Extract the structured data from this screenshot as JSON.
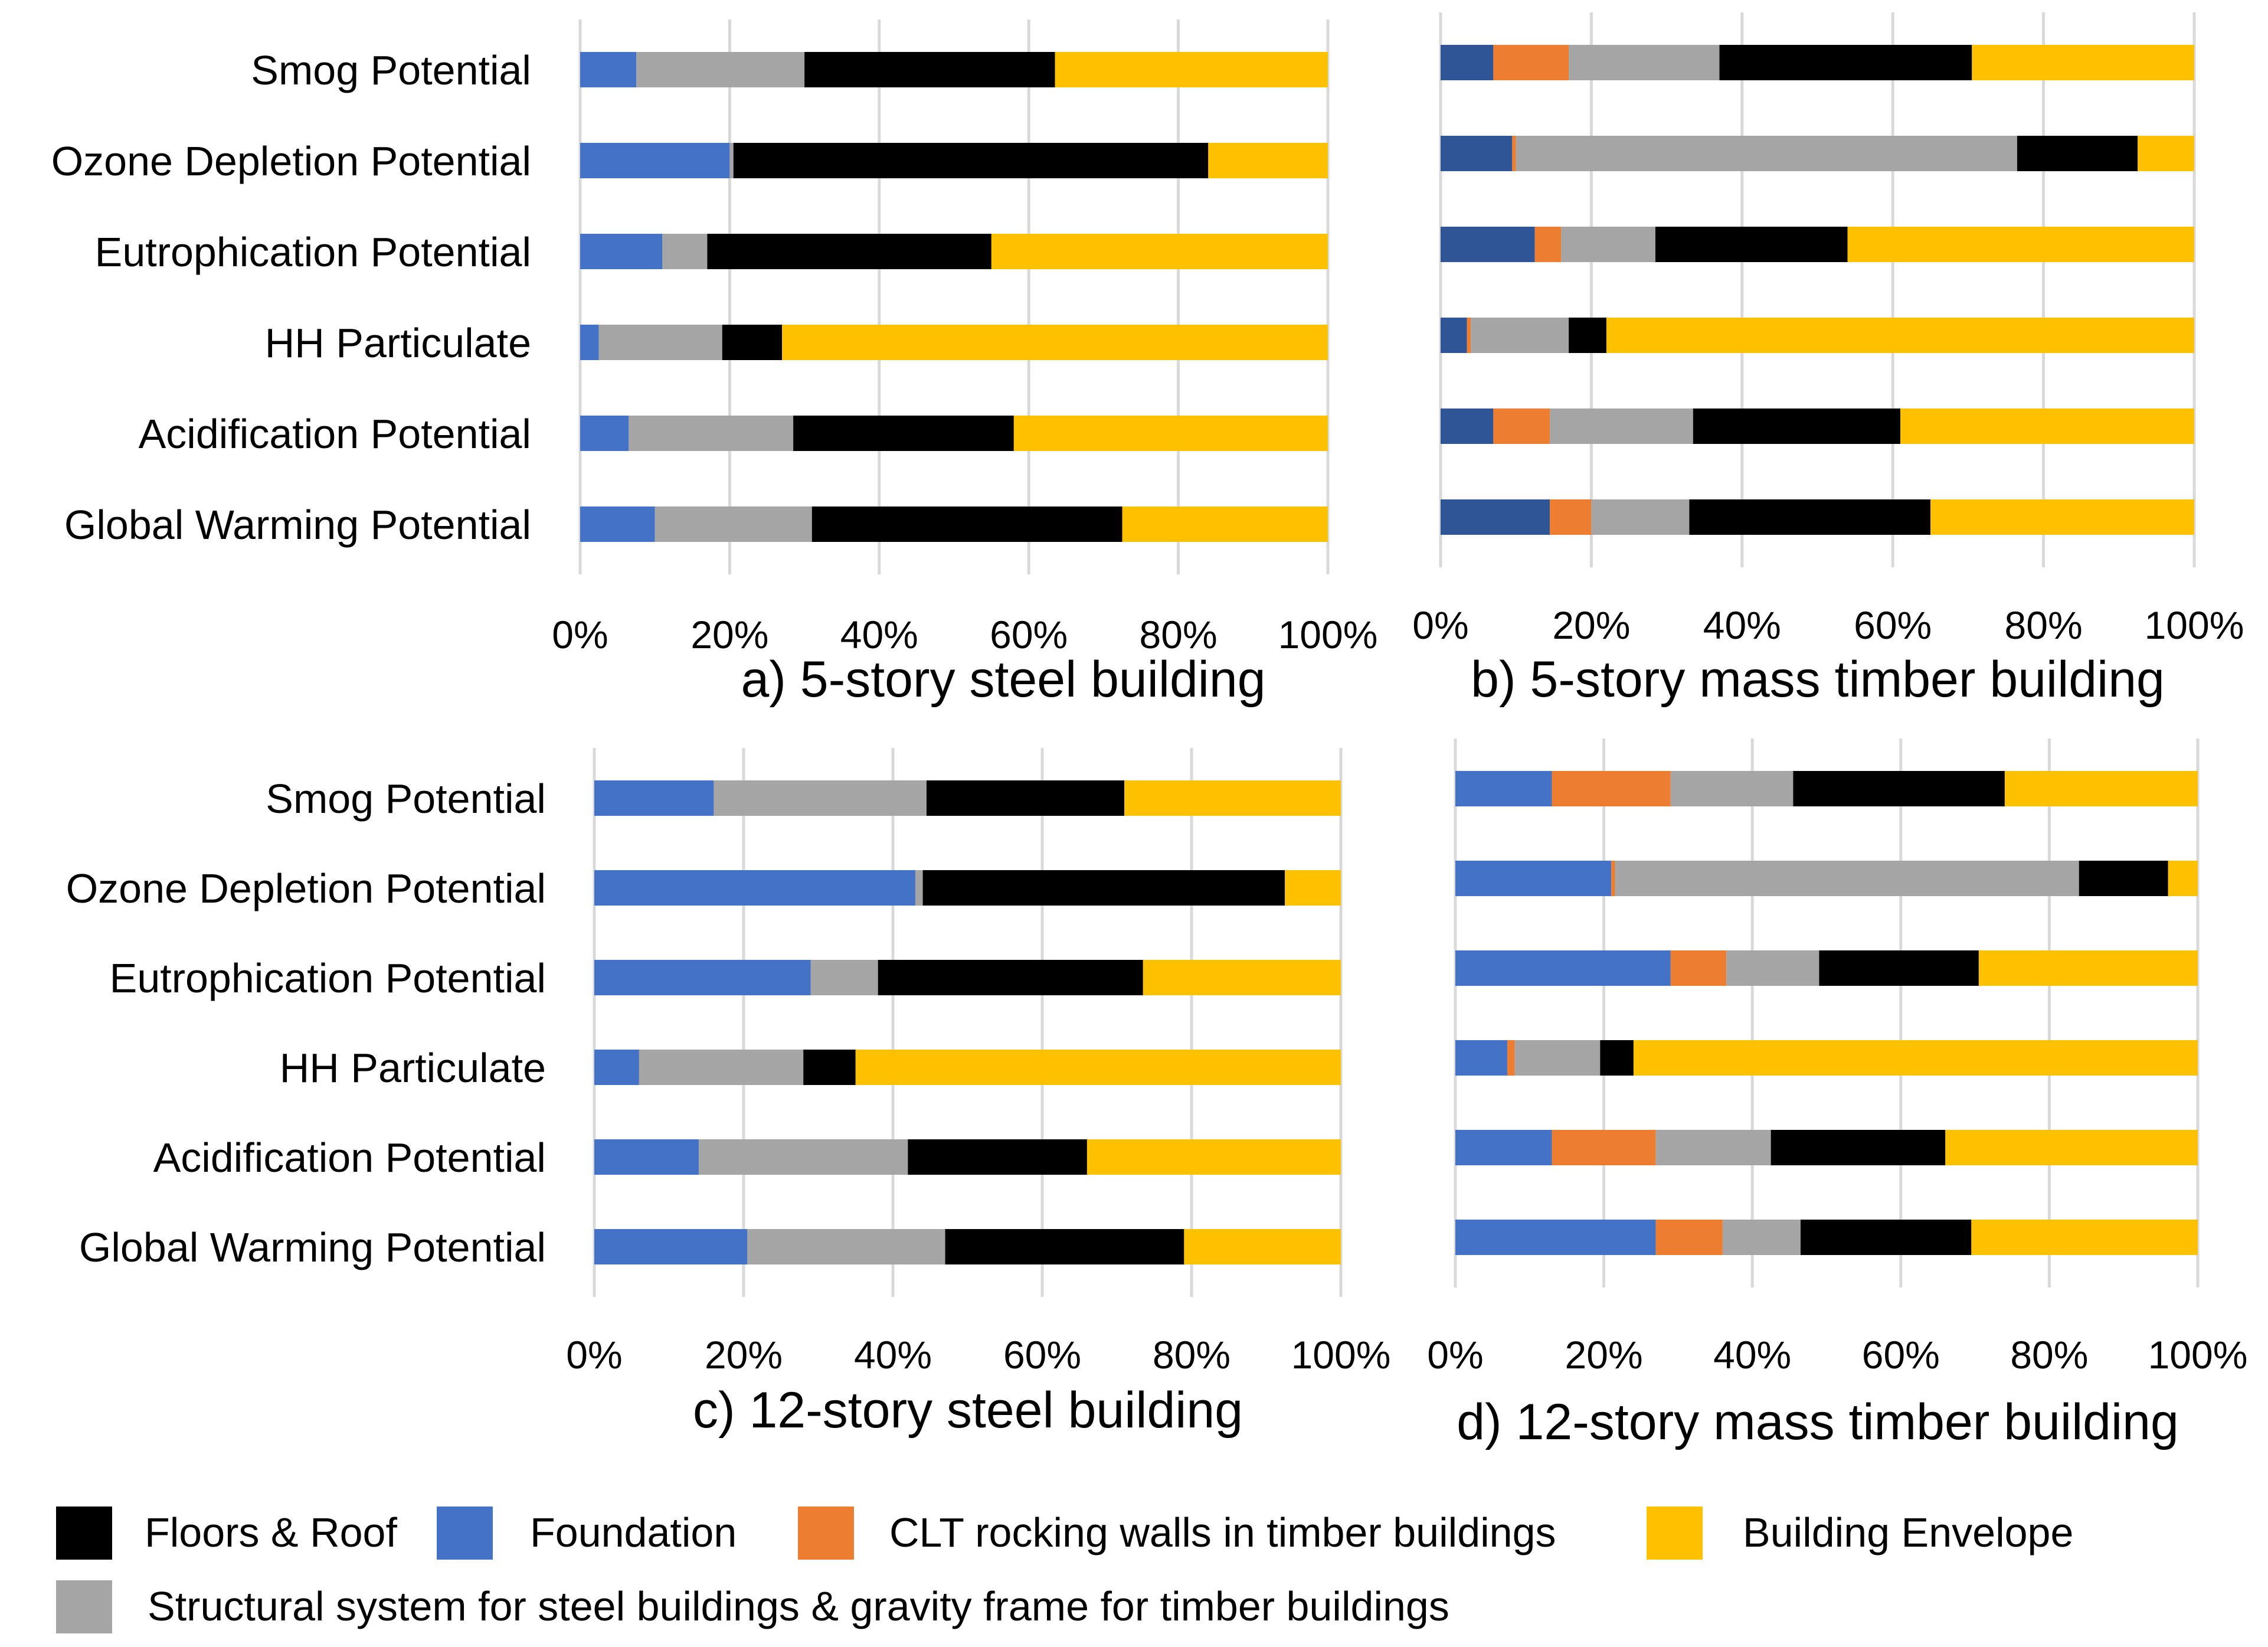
{
  "figure": {
    "legend": [
      {
        "key": "floors",
        "label": "Floors & Roof",
        "color": "#000000"
      },
      {
        "key": "foundation",
        "label": "Foundation",
        "color": "#4472C4"
      },
      {
        "key": "clt",
        "label": "CLT rocking walls in timber buildings",
        "color": "#ED7D31"
      },
      {
        "key": "envelope",
        "label": "Building Envelope",
        "color": "#FFC000"
      },
      {
        "key": "structural",
        "label": "Structural system for steel buildings & gravity frame for timber buildings",
        "color": "#A5A5A5"
      }
    ]
  },
  "chart_data": [
    {
      "type": "bar",
      "orientation": "horizontal",
      "stacked": "percent",
      "title": "a) 5-story steel building",
      "categories": [
        "Smog Potential",
        "Ozone Depletion Potential",
        "Eutrophication Potential",
        "HH Particulate",
        "Acidification Potential",
        "Global Warming Potential"
      ],
      "x_ticks": [
        "0%",
        "20%",
        "40%",
        "60%",
        "80%",
        "100%"
      ],
      "xlim": [
        0,
        100
      ],
      "series": [
        {
          "name": "Foundation",
          "color": "#4472C4",
          "values": [
            7.5,
            20,
            11,
            2.5,
            6.5,
            10
          ]
        },
        {
          "name": "CLT rocking walls",
          "color": "#ED7D31",
          "values": [
            0,
            0,
            0,
            0,
            0,
            0
          ]
        },
        {
          "name": "Structural system",
          "color": "#A5A5A5",
          "values": [
            22.5,
            0.5,
            6,
            16.5,
            22,
            21
          ]
        },
        {
          "name": "Floors & Roof",
          "color": "#000000",
          "values": [
            33.5,
            63.5,
            38,
            8,
            29.5,
            41.5
          ]
        },
        {
          "name": "Building Envelope",
          "color": "#FFC000",
          "values": [
            36.5,
            16,
            45,
            73,
            42,
            27.5
          ]
        }
      ]
    },
    {
      "type": "bar",
      "orientation": "horizontal",
      "stacked": "percent",
      "title": "b) 5-story mass timber building",
      "categories": [
        "Smog Potential",
        "Ozone Depletion Potential",
        "Eutrophication Potential",
        "HH Particulate",
        "Acidification Potential",
        "Global Warming Potential"
      ],
      "x_ticks": [
        "0%",
        "20%",
        "40%",
        "60%",
        "80%",
        "100%"
      ],
      "xlim": [
        0,
        100
      ],
      "series": [
        {
          "name": "Foundation",
          "color": "#2F5597",
          "values": [
            7,
            9.5,
            12.5,
            3.5,
            7,
            14.5
          ]
        },
        {
          "name": "CLT rocking walls",
          "color": "#ED7D31",
          "values": [
            10,
            0.5,
            3.5,
            0.5,
            7.5,
            5.5
          ]
        },
        {
          "name": "Structural system",
          "color": "#A5A5A5",
          "values": [
            20,
            66.5,
            12.5,
            13,
            19,
            13
          ]
        },
        {
          "name": "Floors & Roof",
          "color": "#000000",
          "values": [
            33.5,
            16,
            25.5,
            5,
            27.5,
            32
          ]
        },
        {
          "name": "Building Envelope",
          "color": "#FFC000",
          "values": [
            29.5,
            7.5,
            46,
            78,
            39,
            35
          ]
        }
      ]
    },
    {
      "type": "bar",
      "orientation": "horizontal",
      "stacked": "percent",
      "title": "c) 12-story steel building",
      "categories": [
        "Smog Potential",
        "Ozone Depletion Potential",
        "Eutrophication Potential",
        "HH Particulate",
        "Acidification Potential",
        "Global Warming Potential"
      ],
      "x_ticks": [
        "0%",
        "20%",
        "40%",
        "60%",
        "80%",
        "100%"
      ],
      "xlim": [
        0,
        100
      ],
      "series": [
        {
          "name": "Foundation",
          "color": "#4472C4",
          "values": [
            16,
            43,
            29,
            6,
            14,
            20.5
          ]
        },
        {
          "name": "CLT rocking walls",
          "color": "#ED7D31",
          "values": [
            0,
            0,
            0,
            0,
            0,
            0
          ]
        },
        {
          "name": "Structural system",
          "color": "#A5A5A5",
          "values": [
            28.5,
            1,
            9,
            22,
            28,
            26.5
          ]
        },
        {
          "name": "Floors & Roof",
          "color": "#000000",
          "values": [
            26.5,
            48.5,
            35.5,
            7,
            24,
            32
          ]
        },
        {
          "name": "Building Envelope",
          "color": "#FFC000",
          "values": [
            29,
            7.5,
            26.5,
            65,
            34,
            21
          ]
        }
      ]
    },
    {
      "type": "bar",
      "orientation": "horizontal",
      "stacked": "percent",
      "title": "d) 12-story mass timber building",
      "categories": [
        "Smog Potential",
        "Ozone Depletion Potential",
        "Eutrophication Potential",
        "HH Particulate",
        "Acidification Potential",
        "Global Warming Potential"
      ],
      "x_ticks": [
        "0%",
        "20%",
        "40%",
        "60%",
        "80%",
        "100%"
      ],
      "xlim": [
        0,
        100
      ],
      "series": [
        {
          "name": "Foundation",
          "color": "#4472C4",
          "values": [
            13,
            21,
            29,
            7,
            13,
            27
          ]
        },
        {
          "name": "CLT rocking walls",
          "color": "#ED7D31",
          "values": [
            16,
            0.5,
            7.5,
            1,
            14,
            9
          ]
        },
        {
          "name": "Structural system",
          "color": "#A5A5A5",
          "values": [
            16.5,
            62.5,
            12.5,
            11.5,
            15.5,
            10.5
          ]
        },
        {
          "name": "Floors & Roof",
          "color": "#000000",
          "values": [
            28.5,
            12,
            21.5,
            4.5,
            23.5,
            23
          ]
        },
        {
          "name": "Building Envelope",
          "color": "#FFC000",
          "values": [
            26,
            4,
            29.5,
            76,
            34,
            30.5
          ]
        }
      ]
    }
  ]
}
